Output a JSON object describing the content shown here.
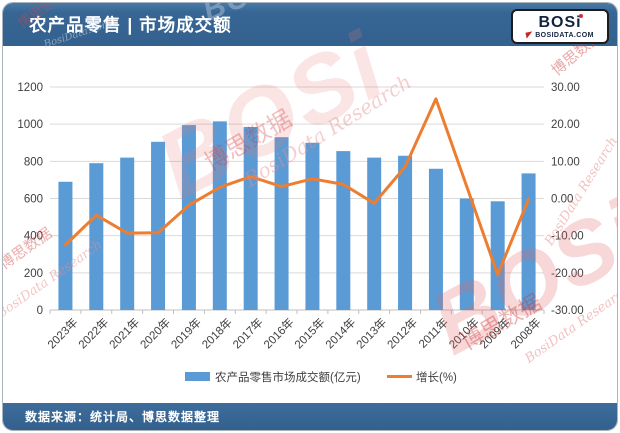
{
  "header": {
    "title": "农产品零售 | 市场成交额",
    "logo": {
      "name": "BOSi",
      "domain": "BOSIDATA.COM"
    }
  },
  "footer": {
    "source": "数据来源：统计局、博思数据整理"
  },
  "watermarks": {
    "cn": "博思数据",
    "en": "BosiData Research",
    "logo": "BOSi",
    "site": "BosiData.com"
  },
  "chart_data": {
    "type": "bar+line",
    "categories": [
      "2023年",
      "2022年",
      "2021年",
      "2020年",
      "2019年",
      "2018年",
      "2017年",
      "2016年",
      "2015年",
      "2014年",
      "2013年",
      "2012年",
      "2011年",
      "2010年",
      "2009年",
      "2008年"
    ],
    "series": [
      {
        "name": "农产品零售市场成交额(亿元)",
        "type": "bar",
        "axis": "left",
        "color": "#5B9BD5",
        "values": [
          690,
          790,
          820,
          905,
          995,
          1015,
          985,
          930,
          900,
          855,
          820,
          830,
          760,
          600,
          585,
          735
        ]
      },
      {
        "name": "增长(%)",
        "type": "line",
        "axis": "right",
        "color": "#ED7D31",
        "values": [
          -12.5,
          -4.5,
          -9.3,
          -9.2,
          -1.8,
          3.0,
          5.9,
          3.2,
          5.3,
          3.8,
          -1.3,
          8.5,
          26.8,
          3.2,
          -20.5,
          -0.2
        ]
      }
    ],
    "left_axis": {
      "min": 0,
      "max": 1200,
      "step": 200,
      "ticks": [
        "0",
        "200",
        "400",
        "600",
        "800",
        "1000",
        "1200"
      ]
    },
    "right_axis": {
      "min": -30,
      "max": 30,
      "step": 10,
      "ticks": [
        "30.00",
        "20.00",
        "10.00",
        "0.00",
        "-10.00",
        "-20.00",
        "-30.00"
      ]
    },
    "grid": true,
    "legend_position": "bottom",
    "colors": {
      "gridline": "#D9D9D9",
      "axis_line": "#BFBFBF",
      "axis_text": "#404040"
    }
  }
}
